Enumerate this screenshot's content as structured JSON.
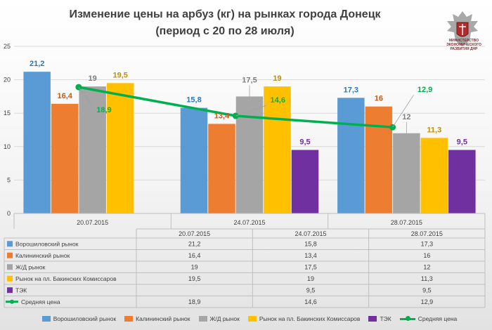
{
  "title_line1": "Изменение цены на арбуз (кг) на рынках города Донецк",
  "title_line2": "(период с 20 по 28 июля)",
  "logo": {
    "text_line1": "МИНИСТЕРСТВО",
    "text_line2": "ЭКОНОМИЧЕСКОГО",
    "text_line3": "РАЗВИТИЯ ДНР"
  },
  "colors": {
    "series": [
      "#5b9bd5",
      "#ed7d31",
      "#a5a5a5",
      "#ffc000",
      "#7030a0"
    ],
    "line": "#00b050",
    "axis_text": "#404040",
    "label_text": [
      "#2e75b6",
      "#c55a11",
      "#7f7f7f",
      "#bf9000",
      "#7030a0",
      "#00b050"
    ]
  },
  "chart_data": {
    "type": "bar",
    "categories": [
      "20.07.2015",
      "24.07.2015",
      "28.07.2015"
    ],
    "series": [
      {
        "name": "Ворошиловский рынок",
        "values": [
          21.2,
          15.8,
          17.3
        ],
        "labels": [
          "21,2",
          "15,8",
          "17,3"
        ]
      },
      {
        "name": "Калининский рынок",
        "values": [
          16.4,
          13.4,
          16
        ],
        "labels": [
          "16,4",
          "13,4",
          "16"
        ]
      },
      {
        "name": "Ж/Д рынок",
        "values": [
          19,
          17.5,
          12
        ],
        "labels": [
          "19",
          "17,5",
          "12"
        ]
      },
      {
        "name": "Рынок на пл. Бакинских Комиссаров",
        "values": [
          19.5,
          19,
          11.3
        ],
        "labels": [
          "19,5",
          "19",
          "11,3"
        ]
      },
      {
        "name": "ТЭК",
        "values": [
          null,
          9.5,
          9.5
        ],
        "labels": [
          "",
          "9,5",
          "9,5"
        ]
      }
    ],
    "line": {
      "name": "Средняя цена",
      "type": "line",
      "values": [
        18.9,
        14.6,
        12.9
      ],
      "labels": [
        "18,9",
        "14,6",
        "12,9"
      ]
    },
    "ylim": [
      0,
      25
    ],
    "yticks": [
      "0",
      "5",
      "10",
      "15",
      "20",
      "25"
    ],
    "grid": true,
    "legend_position": "bottom",
    "data_table": true
  }
}
